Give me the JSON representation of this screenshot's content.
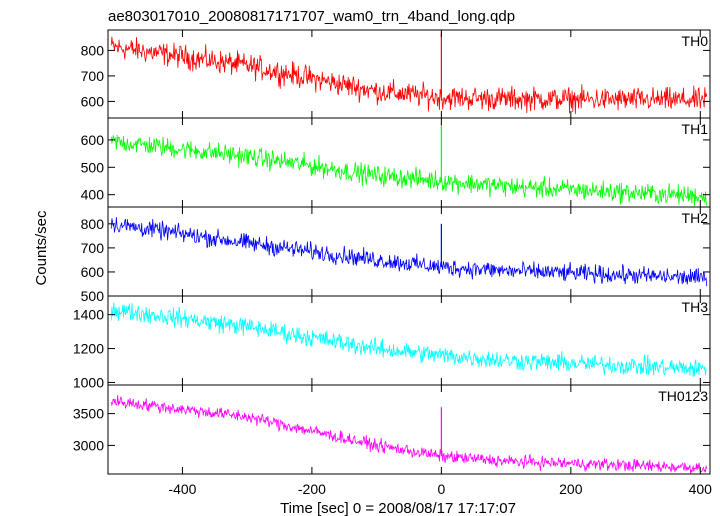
{
  "chart_data": {
    "type": "line",
    "title": "ae803017010_20080817171707_wam0_trn_4band_long.qdp",
    "xlabel": "Time [sec] 0 = 2008/08/17 17:17:07",
    "ylabel": "Counts/sec",
    "xlim": [
      -515,
      415
    ],
    "xticks": [
      -400,
      -200,
      0,
      200,
      400
    ],
    "grid": false,
    "panels": [
      {
        "name": "TH0",
        "color": "#ff0000",
        "ylim": [
          535,
          880
        ],
        "yticks": [
          600,
          700,
          800
        ],
        "trend": {
          "x": [
            -510,
            -300,
            -100,
            0,
            100,
            400
          ],
          "y": [
            815,
            740,
            640,
            615,
            610,
            605
          ]
        },
        "noise_amplitude": 38,
        "spikes": [
          {
            "x": 0,
            "y": 870
          }
        ]
      },
      {
        "name": "TH1",
        "color": "#00ff00",
        "ylim": [
          355,
          680
        ],
        "yticks": [
          400,
          500,
          600
        ],
        "trend": {
          "x": [
            -510,
            -300,
            -100,
            0,
            100,
            400
          ],
          "y": [
            595,
            540,
            470,
            450,
            430,
            395
          ]
        },
        "noise_amplitude": 30,
        "spikes": [
          {
            "x": 0,
            "y": 660
          }
        ]
      },
      {
        "name": "TH2",
        "color": "#0000ff",
        "ylim": [
          500,
          870
        ],
        "yticks": [
          500,
          600,
          700,
          800
        ],
        "trend": {
          "x": [
            -510,
            -300,
            -100,
            0,
            100,
            400
          ],
          "y": [
            800,
            720,
            650,
            620,
            605,
            575
          ]
        },
        "noise_amplitude": 30,
        "spikes": [
          {
            "x": 0,
            "y": 800
          }
        ]
      },
      {
        "name": "TH3",
        "color": "#00ffff",
        "ylim": [
          985,
          1510
        ],
        "yticks": [
          1000,
          1200,
          1400
        ],
        "trend": {
          "x": [
            -510,
            -300,
            -100,
            0,
            100,
            400
          ],
          "y": [
            1430,
            1330,
            1200,
            1160,
            1130,
            1080
          ]
        },
        "noise_amplitude": 45,
        "spikes": []
      },
      {
        "name": "TH0123",
        "color": "#ff00ff",
        "ylim": [
          2550,
          3950
        ],
        "yticks": [
          3000,
          3500
        ],
        "trend": {
          "x": [
            -510,
            -300,
            -100,
            0,
            100,
            400
          ],
          "y": [
            3700,
            3450,
            3000,
            2830,
            2750,
            2650
          ]
        },
        "noise_amplitude": 80,
        "spikes": [
          {
            "x": 0,
            "y": 3600
          }
        ]
      }
    ]
  }
}
